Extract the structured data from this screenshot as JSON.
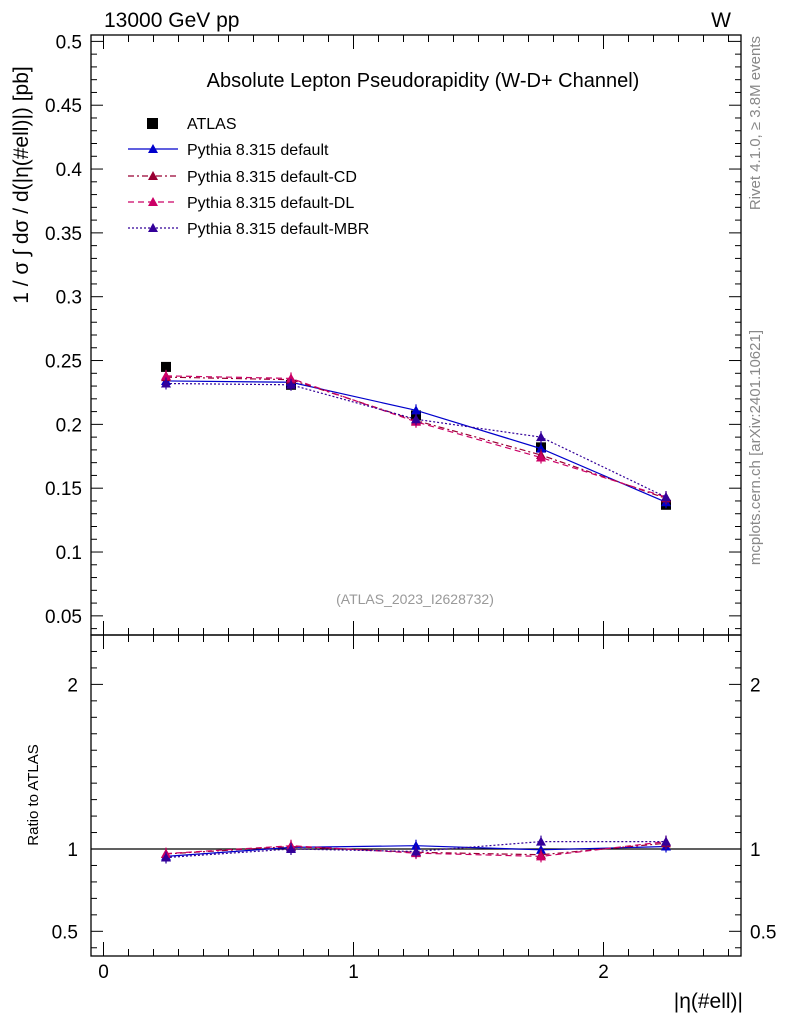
{
  "header": {
    "energy_label": "13000 GeV pp",
    "process_label": "W"
  },
  "side": {
    "rivet_label": "Rivet 4.1.0, ≥ 3.8M events",
    "mcplots_label": "mcplots.cern.ch [arXiv:2401.10621]"
  },
  "analysis_id": "(ATLAS_2023_I2628732)",
  "colors": {
    "atlas": "#000000",
    "default": "#0000cc",
    "cd": "#990033",
    "dl": "#cc0066",
    "mbr": "#330099",
    "watermark": "#999999"
  },
  "chart_data": [
    {
      "type": "line",
      "panel": "main",
      "title": "Absolute Lepton Pseudorapidity (W-D+ Channel)",
      "ylabel": "1 / σ ∫ dσ / d(|η(#ell)|) [pb]",
      "xlim": [
        -0.05,
        2.55
      ],
      "ylim": [
        0.035,
        0.505
      ],
      "yticks": [
        0.05,
        0.1,
        0.15,
        0.2,
        0.25,
        0.3,
        0.35,
        0.4,
        0.45,
        0.5
      ],
      "ytick_labels": [
        "0.05",
        "0.1",
        "0.15",
        "0.2",
        "0.25",
        "0.3",
        "0.35",
        "0.4",
        "0.45",
        "0.5"
      ],
      "x": [
        0.25,
        0.75,
        1.25,
        1.75,
        2.25
      ],
      "series": [
        {
          "name": "ATLAS",
          "key": "atlas",
          "style": "marker-square",
          "values": [
            0.245,
            0.231,
            0.207,
            0.182,
            0.137
          ]
        },
        {
          "name": "Pythia 8.315 default",
          "key": "default",
          "style": "solid",
          "values": [
            0.234,
            0.233,
            0.211,
            0.181,
            0.139
          ]
        },
        {
          "name": "Pythia 8.315 default-CD",
          "key": "cd",
          "style": "dashdot",
          "values": [
            0.237,
            0.235,
            0.203,
            0.176,
            0.142
          ]
        },
        {
          "name": "Pythia 8.315 default-DL",
          "key": "dl",
          "style": "dashed",
          "values": [
            0.238,
            0.236,
            0.202,
            0.174,
            0.143
          ]
        },
        {
          "name": "Pythia 8.315 default-MBR",
          "key": "mbr",
          "style": "dotted",
          "values": [
            0.232,
            0.231,
            0.204,
            0.19,
            0.143
          ]
        }
      ]
    },
    {
      "type": "line",
      "panel": "ratio",
      "ylabel": "Ratio to ATLAS",
      "xlabel": "|η(#ell)|",
      "xlim": [
        -0.05,
        2.55
      ],
      "ylim": [
        0.35,
        2.3
      ],
      "yticks": [
        0.5,
        1,
        2
      ],
      "ytick_labels": [
        "0.5",
        "1",
        "2"
      ],
      "xticks": [
        0,
        1,
        2
      ],
      "xtick_labels": [
        "0",
        "1",
        "2"
      ],
      "x": [
        0.25,
        0.75,
        1.25,
        1.75,
        2.25
      ],
      "series": [
        {
          "name": "Pythia 8.315 default",
          "key": "default",
          "style": "solid",
          "values": [
            0.955,
            1.01,
            1.02,
            0.995,
            1.015
          ]
        },
        {
          "name": "Pythia 8.315 default-CD",
          "key": "cd",
          "style": "dashdot",
          "values": [
            0.97,
            1.015,
            0.98,
            0.965,
            1.035
          ]
        },
        {
          "name": "Pythia 8.315 default-DL",
          "key": "dl",
          "style": "dashed",
          "values": [
            0.972,
            1.02,
            0.975,
            0.955,
            1.045
          ]
        },
        {
          "name": "Pythia 8.315 default-MBR",
          "key": "mbr",
          "style": "dotted",
          "values": [
            0.948,
            1.0,
            0.985,
            1.045,
            1.045
          ]
        }
      ]
    }
  ]
}
